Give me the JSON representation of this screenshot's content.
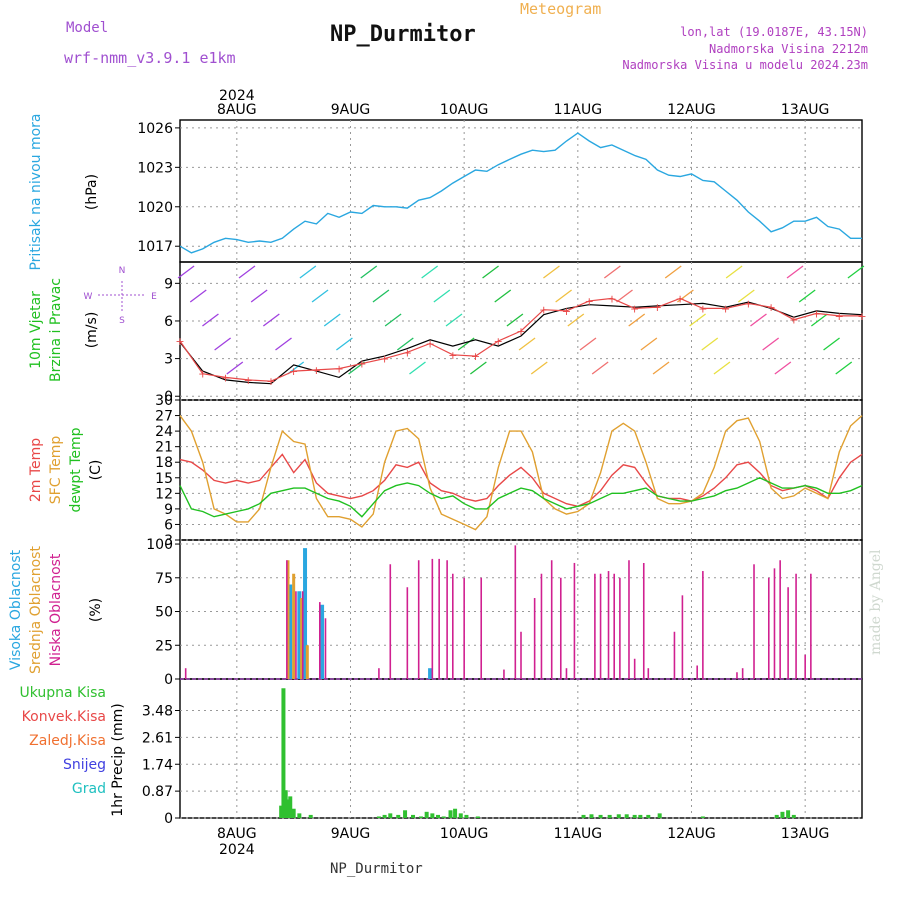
{
  "header": {
    "model_label": "Model",
    "model_value": "wrf-nmm_v3.9.1 e1km",
    "title": "NP_Durmitor",
    "subtitle": "Meteogram",
    "lonlat": "lon,lat (19.0187E, 43.15N)",
    "altitude": "Nadmorska Visina 2212m",
    "model_altitude": "Nadmorska Visina u modelu 2024.23m"
  },
  "footer": {
    "station": "NP_Durmitor",
    "watermark": "made by Angel"
  },
  "colors": {
    "pressure": "#2aa7e0",
    "wind_label": "#20c020",
    "temp2m": "#e84848",
    "sfc": "#e0a030",
    "dewpt": "#20c020",
    "high_cloud": "#2aa7e0",
    "mid_cloud": "#e0a030",
    "low_cloud": "#d02090",
    "total_precip": "#30c030",
    "conv": "#e84848",
    "frozen": "#f07030",
    "snow": "#4040e0",
    "hail": "#20c0c0"
  },
  "chart_data": [
    {
      "type": "line",
      "panel": "pressure",
      "ylabel": "Pritisak na nivou mora",
      "unit": "(hPa)",
      "yticks": [
        1017,
        1020,
        1023,
        1026
      ],
      "ylim": [
        1015.8,
        1026.6
      ],
      "x_days": [
        7.5,
        7.6,
        7.7,
        7.8,
        7.9,
        8.0,
        8.1,
        8.2,
        8.3,
        8.4,
        8.5,
        8.6,
        8.7,
        8.8,
        8.9,
        9.0,
        9.1,
        9.2,
        9.3,
        9.4,
        9.5,
        9.6,
        9.7,
        9.8,
        9.9,
        10.0,
        10.1,
        10.2,
        10.3,
        10.4,
        10.5,
        10.6,
        10.7,
        10.8,
        10.9,
        11.0,
        11.1,
        11.2,
        11.3,
        11.4,
        11.5,
        11.6,
        11.7,
        11.8,
        11.9,
        12.0,
        12.1,
        12.2,
        12.3,
        12.4,
        12.5,
        12.6,
        12.7,
        12.8,
        12.9,
        13.0,
        13.1,
        13.2,
        13.3,
        13.4,
        13.5
      ],
      "values": [
        1017.0,
        1016.5,
        1016.8,
        1017.3,
        1017.6,
        1017.5,
        1017.3,
        1017.4,
        1017.3,
        1017.6,
        1018.3,
        1018.9,
        1018.7,
        1019.5,
        1019.2,
        1019.6,
        1019.5,
        1020.1,
        1020.0,
        1020.0,
        1019.9,
        1020.5,
        1020.7,
        1021.2,
        1021.8,
        1022.3,
        1022.8,
        1022.7,
        1023.2,
        1023.6,
        1024.0,
        1024.3,
        1024.2,
        1024.3,
        1025.0,
        1025.6,
        1025.0,
        1024.5,
        1024.7,
        1024.3,
        1023.9,
        1023.6,
        1022.8,
        1022.4,
        1022.3,
        1022.5,
        1022.0,
        1021.9,
        1021.2,
        1020.5,
        1019.6,
        1018.9,
        1018.1,
        1018.4,
        1018.9,
        1018.9,
        1019.2,
        1018.5,
        1018.3,
        1017.6,
        1017.6
      ]
    },
    {
      "type": "line",
      "panel": "wind",
      "ylabel": "10m Vjetar Brzina i Pravac",
      "unit": "(m/s)",
      "compass": [
        "N",
        "S",
        "W",
        "E"
      ],
      "yticks": [
        0,
        3,
        6,
        9
      ],
      "ylim": [
        -0.3,
        10.7
      ],
      "x_days": [
        7.5,
        7.7,
        7.9,
        8.1,
        8.3,
        8.5,
        8.7,
        8.9,
        9.1,
        9.3,
        9.5,
        9.7,
        9.9,
        10.1,
        10.3,
        10.5,
        10.7,
        10.9,
        11.1,
        11.3,
        11.5,
        11.7,
        11.9,
        12.1,
        12.3,
        12.5,
        12.7,
        12.9,
        13.1,
        13.3,
        13.5
      ],
      "values": [
        4.3,
        2.0,
        1.3,
        1.1,
        1.0,
        2.5,
        2.0,
        1.5,
        2.8,
        3.2,
        3.8,
        4.5,
        4.0,
        4.5,
        4.0,
        4.8,
        6.5,
        7.0,
        7.3,
        7.2,
        7.1,
        7.2,
        7.3,
        7.4,
        7.1,
        7.5,
        7.0,
        6.3,
        6.8,
        6.6,
        6.5
      ],
      "gust_values": [
        4.4,
        1.8,
        1.5,
        1.3,
        1.2,
        2.0,
        2.1,
        2.2,
        2.6,
        3.0,
        3.5,
        4.2,
        3.3,
        3.2,
        4.4,
        5.2,
        6.9,
        6.8,
        7.6,
        7.8,
        7.0,
        7.1,
        7.8,
        7.0,
        7.0,
        7.4,
        7.1,
        6.1,
        6.6,
        6.4,
        6.4
      ]
    },
    {
      "type": "line",
      "panel": "temperature",
      "ylabel": "2m Temp",
      "ylabel2": "SFC Temp",
      "ylabel3": "dewpt Temp",
      "unit": "(C)",
      "yticks": [
        3,
        6,
        9,
        12,
        15,
        18,
        21,
        24,
        27,
        30
      ],
      "ylim": [
        3,
        30
      ],
      "x_days": [
        7.5,
        7.6,
        7.7,
        7.8,
        7.9,
        8.0,
        8.1,
        8.2,
        8.3,
        8.4,
        8.5,
        8.6,
        8.7,
        8.8,
        8.9,
        9.0,
        9.1,
        9.2,
        9.3,
        9.4,
        9.5,
        9.6,
        9.7,
        9.8,
        9.9,
        10.0,
        10.1,
        10.2,
        10.3,
        10.4,
        10.5,
        10.6,
        10.7,
        10.8,
        10.9,
        11.0,
        11.1,
        11.2,
        11.3,
        11.4,
        11.5,
        11.6,
        11.7,
        11.8,
        11.9,
        12.0,
        12.1,
        12.2,
        12.3,
        12.4,
        12.5,
        12.6,
        12.7,
        12.8,
        12.9,
        13.0,
        13.1,
        13.2,
        13.3,
        13.4,
        13.5
      ],
      "series": [
        {
          "name": "2m Temp",
          "values": [
            18.5,
            18.0,
            16.5,
            14.5,
            14.0,
            14.5,
            14.0,
            14.5,
            17.0,
            19.5,
            16.0,
            18.5,
            14.0,
            12.0,
            11.5,
            11.0,
            11.5,
            12.5,
            14.5,
            17.5,
            17.0,
            18.0,
            14.0,
            12.5,
            12.0,
            11.0,
            10.5,
            11.0,
            13.5,
            15.5,
            17.0,
            15.0,
            12.0,
            11.0,
            10.0,
            9.5,
            10.5,
            12.5,
            15.5,
            17.5,
            17.0,
            14.0,
            11.5,
            11.0,
            11.0,
            10.5,
            11.5,
            13.0,
            15.0,
            17.5,
            18.0,
            16.0,
            13.5,
            12.5,
            13.0,
            13.5,
            12.5,
            11.0,
            15.0,
            18.0,
            19.5
          ]
        },
        {
          "name": "SFC Temp",
          "values": [
            27.0,
            24.0,
            18.0,
            9.0,
            8.0,
            6.5,
            6.5,
            9.0,
            17.0,
            24.0,
            22.0,
            21.5,
            11.0,
            7.5,
            7.5,
            7.0,
            5.5,
            8.0,
            18.0,
            24.0,
            24.5,
            22.5,
            13.0,
            8.0,
            7.0,
            6.0,
            5.0,
            7.5,
            17.0,
            24.0,
            24.0,
            20.0,
            11.0,
            9.0,
            8.0,
            8.5,
            10.0,
            16.0,
            24.0,
            25.5,
            24.0,
            18.0,
            11.0,
            10.0,
            10.0,
            10.5,
            12.0,
            17.0,
            24.0,
            26.0,
            26.5,
            22.0,
            13.0,
            11.0,
            11.5,
            13.0,
            12.0,
            11.0,
            20.0,
            25.0,
            27.0
          ]
        },
        {
          "name": "dewpt Temp",
          "values": [
            13.5,
            9.0,
            8.5,
            7.5,
            8.0,
            8.5,
            9.0,
            10.0,
            12.0,
            12.5,
            13.0,
            13.0,
            12.0,
            11.0,
            10.5,
            9.5,
            7.5,
            10.0,
            12.5,
            13.5,
            14.0,
            13.5,
            12.0,
            11.0,
            11.5,
            10.0,
            9.0,
            9.0,
            11.0,
            12.0,
            13.0,
            12.5,
            11.0,
            10.0,
            9.0,
            9.5,
            10.0,
            11.0,
            12.0,
            12.0,
            12.5,
            13.0,
            11.5,
            11.0,
            10.5,
            10.5,
            11.0,
            11.5,
            12.5,
            13.0,
            14.0,
            15.0,
            14.0,
            13.0,
            13.0,
            13.5,
            13.0,
            12.0,
            12.0,
            12.5,
            13.5
          ]
        }
      ]
    },
    {
      "type": "bar",
      "panel": "clouds",
      "ylabel": "Visoka Oblacnost",
      "ylabel2": "Srednja Oblacnost",
      "ylabel3": "Niska Oblacnost",
      "unit": "(%)",
      "yticks": [
        0,
        25,
        50,
        75,
        100
      ],
      "ylim": [
        0,
        103
      ],
      "series": [
        {
          "name": "Visoka Oblacnost",
          "x_days": [
            8.47,
            8.55,
            8.6,
            8.75,
            9.7
          ],
          "values": [
            70,
            65,
            97,
            55,
            8
          ]
        },
        {
          "name": "Srednja Oblacnost",
          "x_days": [
            8.45,
            8.5,
            8.57,
            8.62
          ],
          "values": [
            88,
            78,
            60,
            25
          ]
        },
        {
          "name": "Niska Oblacnost",
          "x_days": [
            7.55,
            8.44,
            8.52,
            8.58,
            8.73,
            8.78,
            9.25,
            9.35,
            9.5,
            9.6,
            9.72,
            9.78,
            9.85,
            9.9,
            10.0,
            10.15,
            10.35,
            10.45,
            10.5,
            10.62,
            10.68,
            10.77,
            10.85,
            10.9,
            10.97,
            11.15,
            11.2,
            11.27,
            11.32,
            11.37,
            11.45,
            11.5,
            11.58,
            11.62,
            11.85,
            11.92,
            12.05,
            12.1,
            12.4,
            12.45,
            12.55,
            12.68,
            12.73,
            12.78,
            12.85,
            12.92,
            13.0,
            13.05
          ],
          "values": [
            8,
            88,
            65,
            65,
            57,
            45,
            8,
            85,
            68,
            88,
            89,
            89,
            88,
            78,
            75,
            75,
            7,
            99,
            35,
            60,
            78,
            88,
            75,
            8,
            86,
            78,
            78,
            80,
            78,
            75,
            88,
            15,
            86,
            8,
            35,
            62,
            10,
            80,
            5,
            8,
            85,
            75,
            82,
            88,
            68,
            78,
            18,
            78
          ]
        }
      ]
    },
    {
      "type": "bar",
      "panel": "precip",
      "ylabel": "1hr Precip (mm)",
      "legend": [
        "Ukupna Kisa",
        "Konvek.Kisa",
        "Zaledj.Kisa",
        "Snijeg",
        "Grad"
      ],
      "yticks": [
        0,
        0.87,
        1.74,
        2.61,
        3.48
      ],
      "ylim": [
        0,
        4.5
      ],
      "x_days": [
        8.39,
        8.41,
        8.43,
        8.45,
        8.47,
        8.5,
        8.55,
        8.65,
        9.25,
        9.3,
        9.35,
        9.42,
        9.48,
        9.55,
        9.62,
        9.67,
        9.72,
        9.77,
        9.82,
        9.88,
        9.92,
        9.97,
        10.02,
        10.12,
        11.05,
        11.12,
        11.2,
        11.28,
        11.36,
        11.43,
        11.5,
        11.55,
        11.62,
        11.72,
        12.1,
        12.75,
        12.8,
        12.85,
        12.9
      ],
      "values": [
        0.4,
        4.2,
        0.9,
        0.6,
        0.7,
        0.3,
        0.15,
        0.1,
        0.05,
        0.1,
        0.15,
        0.1,
        0.25,
        0.1,
        0.05,
        0.2,
        0.15,
        0.1,
        0.05,
        0.25,
        0.3,
        0.15,
        0.1,
        0.05,
        0.1,
        0.12,
        0.1,
        0.1,
        0.12,
        0.12,
        0.1,
        0.1,
        0.1,
        0.15,
        0.05,
        0.1,
        0.2,
        0.25,
        0.1
      ]
    }
  ],
  "axis": {
    "year": "2024",
    "day_labels": [
      "8AUG",
      "9AUG",
      "10AUG",
      "11AUG",
      "12AUG",
      "13AUG"
    ],
    "day_values": [
      8,
      9,
      10,
      11,
      12,
      13
    ]
  }
}
